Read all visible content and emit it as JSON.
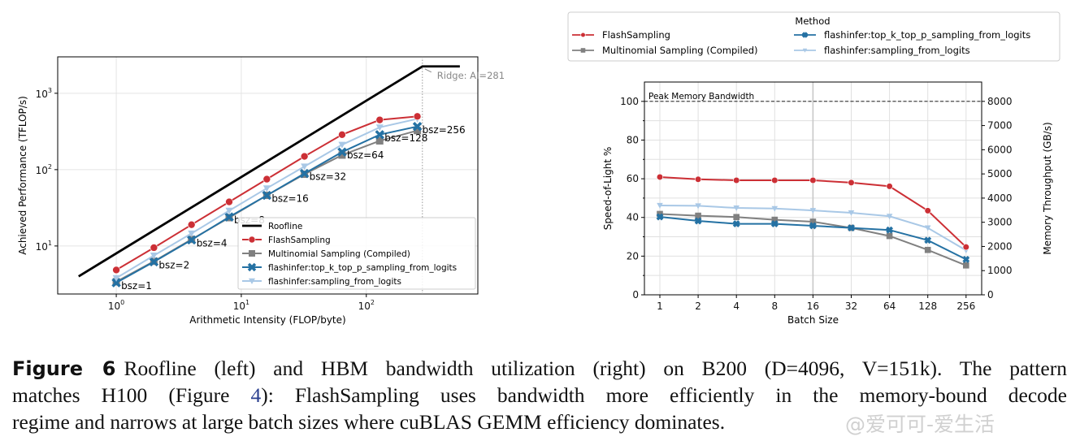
{
  "chart_data": [
    {
      "type": "line",
      "x_scale": "log",
      "y_scale": "log",
      "xlabel": "Arithmetic Intensity (FLOP/byte)",
      "ylabel": "Achieved Performance (TFLOP/s)",
      "xlim": [
        0.34,
        780
      ],
      "ylim": [
        2.35,
        3000
      ],
      "x_ticks": [
        {
          "v": 1,
          "b": "10",
          "e": "0"
        },
        {
          "v": 10,
          "b": "10",
          "e": "1"
        },
        {
          "v": 100,
          "b": "10",
          "e": "2"
        }
      ],
      "y_ticks": [
        {
          "v": 10,
          "b": "10",
          "e": "1"
        },
        {
          "v": 100,
          "b": "10",
          "e": "2"
        },
        {
          "v": 1000,
          "b": "10",
          "e": "3"
        }
      ],
      "grid": true,
      "legend": "lower-right",
      "roofline": {
        "name": "Roofline",
        "x": [
          0.5,
          281,
          560
        ],
        "y": [
          4,
          2248,
          2248
        ],
        "color": "#000000"
      },
      "ridge": {
        "x": 281,
        "label": "Ridge: AI=281"
      },
      "x": [
        1,
        2,
        4,
        8,
        16,
        32,
        64,
        128,
        256
      ],
      "point_labels": [
        "bsz=1",
        "bsz=2",
        "bsz=4",
        "bsz=8",
        "bsz=16",
        "bsz=32",
        "bsz=64",
        "bsz=128",
        "bsz=256"
      ],
      "series": [
        {
          "name": "FlashSampling",
          "color": "#cc2f35",
          "marker": "circle",
          "values": [
            4.85,
            9.5,
            19,
            37.8,
            75,
            149,
            287,
            448,
            498
          ]
        },
        {
          "name": "Multinomial Sampling (Compiled)",
          "color": "#808080",
          "marker": "square",
          "values": [
            3.4,
            6.3,
            12.2,
            23.5,
            46,
            87,
            155,
            238,
            325
          ]
        },
        {
          "name": "flashinfer:top_k_top_p_sampling_from_logits",
          "color": "#2471a3",
          "marker": "x",
          "values": [
            3.3,
            6.2,
            12,
            24,
            46,
            89,
            170,
            287,
            367
          ]
        },
        {
          "name": "flashinfer:sampling_from_logits",
          "color": "#a9c8e6",
          "marker": "triangle-down",
          "values": [
            3.8,
            7.5,
            14.6,
            29,
            57,
            110,
            212,
            358,
            462
          ]
        }
      ]
    },
    {
      "type": "line",
      "xlabel": "Batch Size",
      "ylabel": "Speed-of-Light %",
      "ylabel_right": "Memory Throughput (GB/s)",
      "categories": [
        "1",
        "2",
        "4",
        "8",
        "16",
        "32",
        "64",
        "128",
        "256"
      ],
      "ylim": [
        0,
        110
      ],
      "y_ticks": [
        0,
        20,
        40,
        60,
        80,
        100
      ],
      "y_right_ticks": [
        "0",
        "1000",
        "2000",
        "3000",
        "4000",
        "5000",
        "6000",
        "7000",
        "8000"
      ],
      "grid": true,
      "legend": "top (outside)",
      "legend_title": "Method",
      "peak": {
        "value": 100,
        "label": "Peak Memory Bandwidth"
      },
      "series": [
        {
          "name": "FlashSampling",
          "color": "#cc2f35",
          "marker": "circle",
          "values": [
            60.9,
            59.7,
            59.2,
            59.2,
            59.2,
            58.0,
            56.1,
            43.5,
            24.7
          ]
        },
        {
          "name": "Multinomial Sampling (Compiled)",
          "color": "#808080",
          "marker": "square",
          "values": [
            41.8,
            40.9,
            40.2,
            38.8,
            37.8,
            34.6,
            30.4,
            23.2,
            15.2
          ]
        },
        {
          "name": "flashinfer:top_k_top_p_sampling_from_logits",
          "color": "#2471a3",
          "marker": "x",
          "values": [
            40.3,
            38.2,
            36.7,
            36.7,
            35.7,
            34.6,
            33.5,
            28.2,
            18.3
          ]
        },
        {
          "name": "flashinfer:sampling_from_logits",
          "color": "#a9c8e6",
          "marker": "triangle-down",
          "values": [
            46.2,
            46.0,
            44.9,
            44.6,
            43.6,
            42.4,
            40.6,
            34.6,
            23.0
          ]
        }
      ]
    }
  ],
  "caption": {
    "label": "Figure 6",
    "line1": "Roofline (left) and HBM bandwidth utilization (right) on B200 (D=4096, V=151k). The pattern",
    "line2_a": "matches H100 (Figure ",
    "line2_ref": "4",
    "line2_b": "): FlashSampling uses bandwidth more efficiently in the memory-bound decode",
    "line3": "regime and narrows at large batch sizes where cuBLAS GEMM efficiency dominates."
  },
  "watermark": "@爱可可-爱生活"
}
